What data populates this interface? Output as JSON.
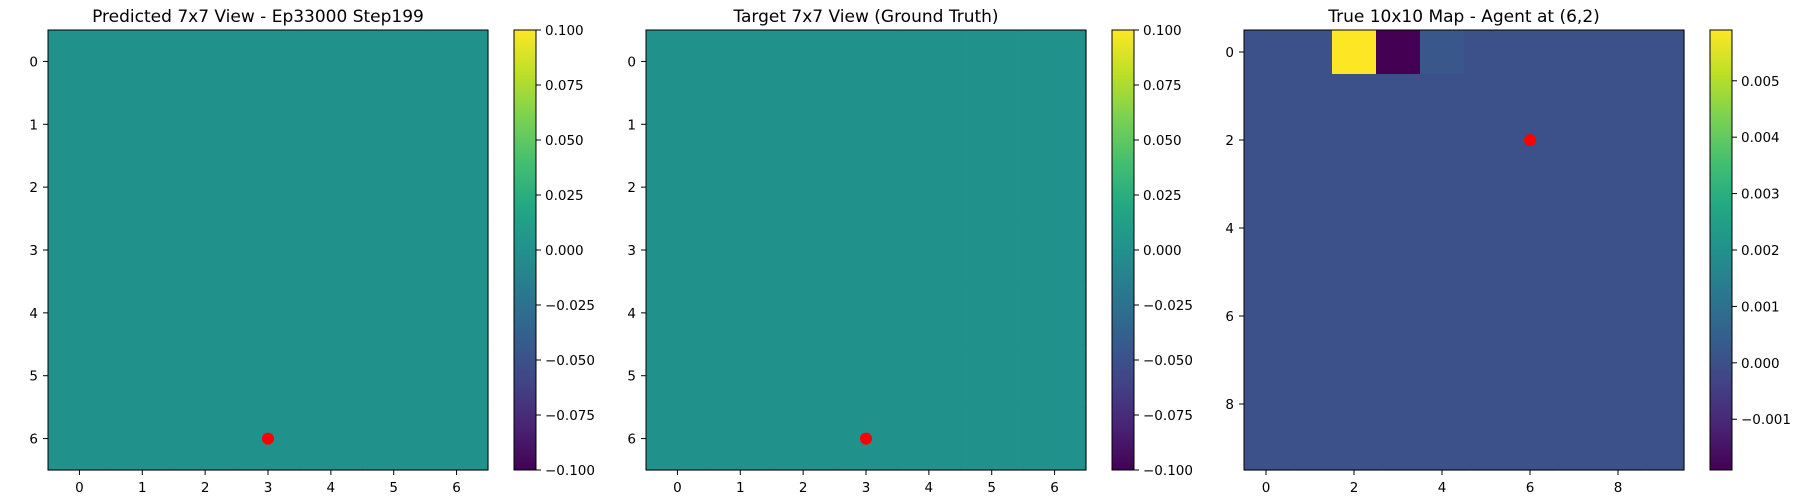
{
  "chart_data": [
    {
      "type": "heatmap",
      "title": "Predicted 7x7 View - Ep33000 Step199",
      "rows": 7,
      "cols": 7,
      "values": [
        [
          0,
          0,
          0,
          0,
          0,
          0,
          0
        ],
        [
          0,
          0,
          0,
          0,
          0,
          0,
          0
        ],
        [
          0,
          0,
          0,
          0,
          0,
          0,
          0
        ],
        [
          0,
          0,
          0,
          0,
          0,
          0,
          0
        ],
        [
          0,
          0,
          0,
          0,
          0,
          0,
          0
        ],
        [
          0,
          0,
          0,
          0,
          0,
          0,
          0
        ],
        [
          0,
          0,
          0,
          0,
          0,
          0,
          0
        ]
      ],
      "xticks": [
        0,
        1,
        2,
        3,
        4,
        5,
        6
      ],
      "yticks": [
        0,
        1,
        2,
        3,
        4,
        5,
        6
      ],
      "clim": [
        -0.1,
        0.1
      ],
      "colorbar_ticks": [
        0.1,
        0.075,
        0.05,
        0.025,
        0.0,
        -0.025,
        -0.05,
        -0.075,
        -0.1
      ],
      "colorbar_tick_labels": [
        "0.100",
        "0.075",
        "0.050",
        "0.025",
        "0.000",
        "−0.025",
        "−0.050",
        "−0.075",
        "−0.100"
      ],
      "colormap": "viridis",
      "marker": {
        "x": 3,
        "y": 6,
        "color": "#ff0000"
      }
    },
    {
      "type": "heatmap",
      "title": "Target 7x7 View (Ground Truth)",
      "rows": 7,
      "cols": 7,
      "values": [
        [
          0,
          0,
          0,
          0,
          0,
          0,
          0
        ],
        [
          0,
          0,
          0,
          0,
          0,
          0,
          0
        ],
        [
          0,
          0,
          0,
          0,
          0,
          0,
          0
        ],
        [
          0,
          0,
          0,
          0,
          0,
          0,
          0
        ],
        [
          0,
          0,
          0,
          0,
          0,
          0,
          0
        ],
        [
          0,
          0,
          0,
          0,
          0,
          0,
          0
        ],
        [
          0,
          0,
          0,
          0,
          0,
          0,
          0
        ]
      ],
      "xticks": [
        0,
        1,
        2,
        3,
        4,
        5,
        6
      ],
      "yticks": [
        0,
        1,
        2,
        3,
        4,
        5,
        6
      ],
      "clim": [
        -0.1,
        0.1
      ],
      "colorbar_ticks": [
        0.1,
        0.075,
        0.05,
        0.025,
        0.0,
        -0.025,
        -0.05,
        -0.075,
        -0.1
      ],
      "colorbar_tick_labels": [
        "0.100",
        "0.075",
        "0.050",
        "0.025",
        "0.000",
        "−0.025",
        "−0.050",
        "−0.075",
        "−0.100"
      ],
      "colormap": "viridis",
      "marker": {
        "x": 3,
        "y": 6,
        "color": "#ff0000"
      }
    },
    {
      "type": "heatmap",
      "title": "True 10x10 Map - Agent at (6,2)",
      "rows": 10,
      "cols": 10,
      "values": [
        [
          0,
          0,
          0.0059,
          -0.0019,
          0.0002,
          0,
          0,
          0,
          0,
          0
        ],
        [
          0,
          0,
          0,
          0,
          0,
          0,
          0,
          0,
          0,
          0
        ],
        [
          0,
          0,
          0,
          0,
          0,
          0,
          0,
          0,
          0,
          0
        ],
        [
          0,
          0,
          0,
          0,
          0,
          0,
          0,
          0,
          0,
          0
        ],
        [
          0,
          0,
          0,
          0,
          0,
          0,
          0,
          0,
          0,
          0
        ],
        [
          0,
          0,
          0,
          0,
          0,
          0,
          0,
          0,
          0,
          0
        ],
        [
          0,
          0,
          0,
          0,
          0,
          0,
          0,
          0,
          0,
          0
        ],
        [
          0,
          0,
          0,
          0,
          0,
          0,
          0,
          0,
          0,
          0
        ],
        [
          0,
          0,
          0,
          0,
          0,
          0,
          0,
          0,
          0,
          0
        ],
        [
          0,
          0,
          0,
          0,
          0,
          0,
          0,
          0,
          0,
          0
        ]
      ],
      "xticks": [
        0,
        2,
        4,
        6,
        8
      ],
      "yticks": [
        0,
        2,
        4,
        6,
        8
      ],
      "clim": [
        -0.0019,
        0.0059
      ],
      "colorbar_ticks": [
        0.005,
        0.004,
        0.003,
        0.002,
        0.001,
        0.0,
        -0.001
      ],
      "colorbar_tick_labels": [
        "0.005",
        "0.004",
        "0.003",
        "0.002",
        "0.001",
        "0.000",
        "−0.001"
      ],
      "colormap": "viridis",
      "marker": {
        "x": 6,
        "y": 2,
        "color": "#ff0000"
      }
    }
  ]
}
